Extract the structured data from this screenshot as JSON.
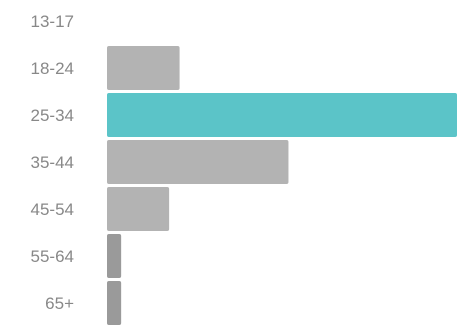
{
  "chart_data": {
    "type": "bar",
    "orientation": "horizontal",
    "categories": [
      "13-17",
      "18-24",
      "25-34",
      "35-44",
      "45-54",
      "55-64",
      "65+"
    ],
    "values": [
      0,
      11.8,
      56.9,
      29.5,
      10.1,
      2.3,
      2.3
    ],
    "xlim": [
      0,
      56.9
    ],
    "grid": false,
    "legend": "none",
    "highlight_category": "25-34",
    "colors": {
      "bar": "#b3b3b3",
      "bar_small": "#9a9a9a",
      "highlight": "#5bc4c8",
      "tick_label": "#888888"
    }
  }
}
